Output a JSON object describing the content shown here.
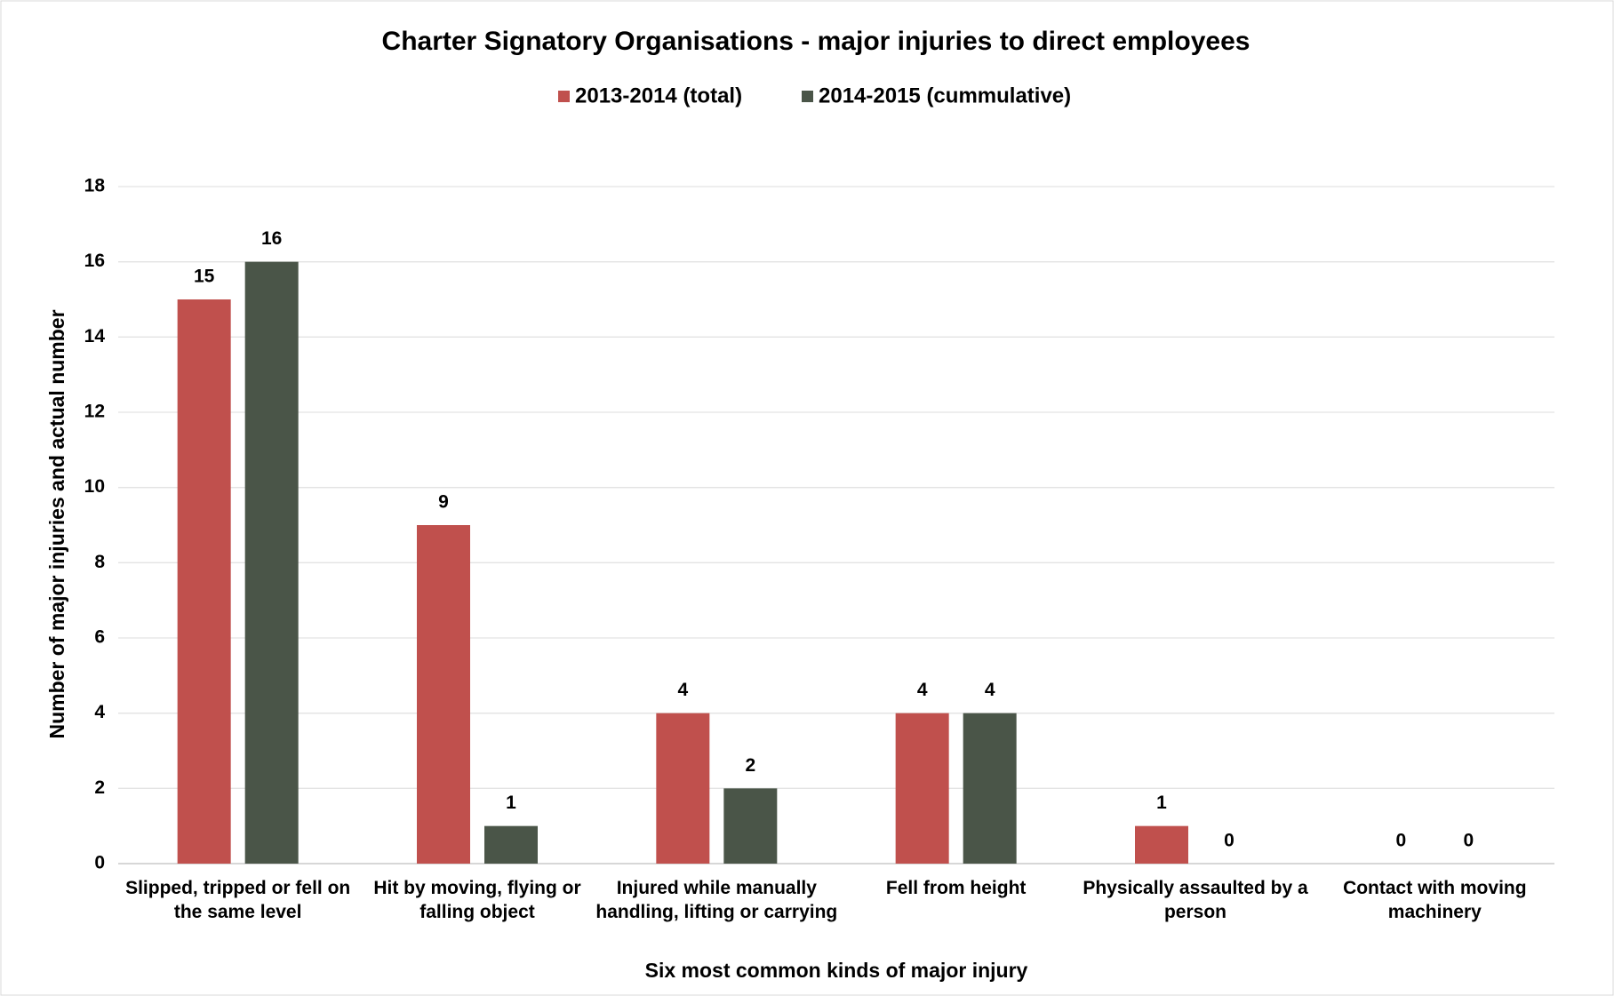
{
  "chart_data": {
    "type": "bar",
    "title": "Charter Signatory Organisations - major injuries to direct employees",
    "xlabel": "Six most common kinds of major injury",
    "ylabel": "Number of major injuries and actual number",
    "categories": [
      "Slipped, tripped or fell on the same level",
      "Hit by moving, flying or falling object",
      "Injured while manually handling, lifting or carrying",
      "Fell from height",
      "Physically assaulted by a person",
      "Contact with moving machinery"
    ],
    "series": [
      {
        "name": "2013-2014 (total)",
        "color": "#c0504d",
        "values": [
          15,
          9,
          4,
          4,
          1,
          0
        ]
      },
      {
        "name": "2014-2015 (cummulative)",
        "color": "#4a5548",
        "values": [
          16,
          1,
          2,
          4,
          0,
          0
        ]
      }
    ],
    "ylim": [
      0,
      18
    ],
    "yticks": [
      0,
      2,
      4,
      6,
      8,
      10,
      12,
      14,
      16,
      18
    ],
    "grid": true,
    "legend": "top"
  }
}
